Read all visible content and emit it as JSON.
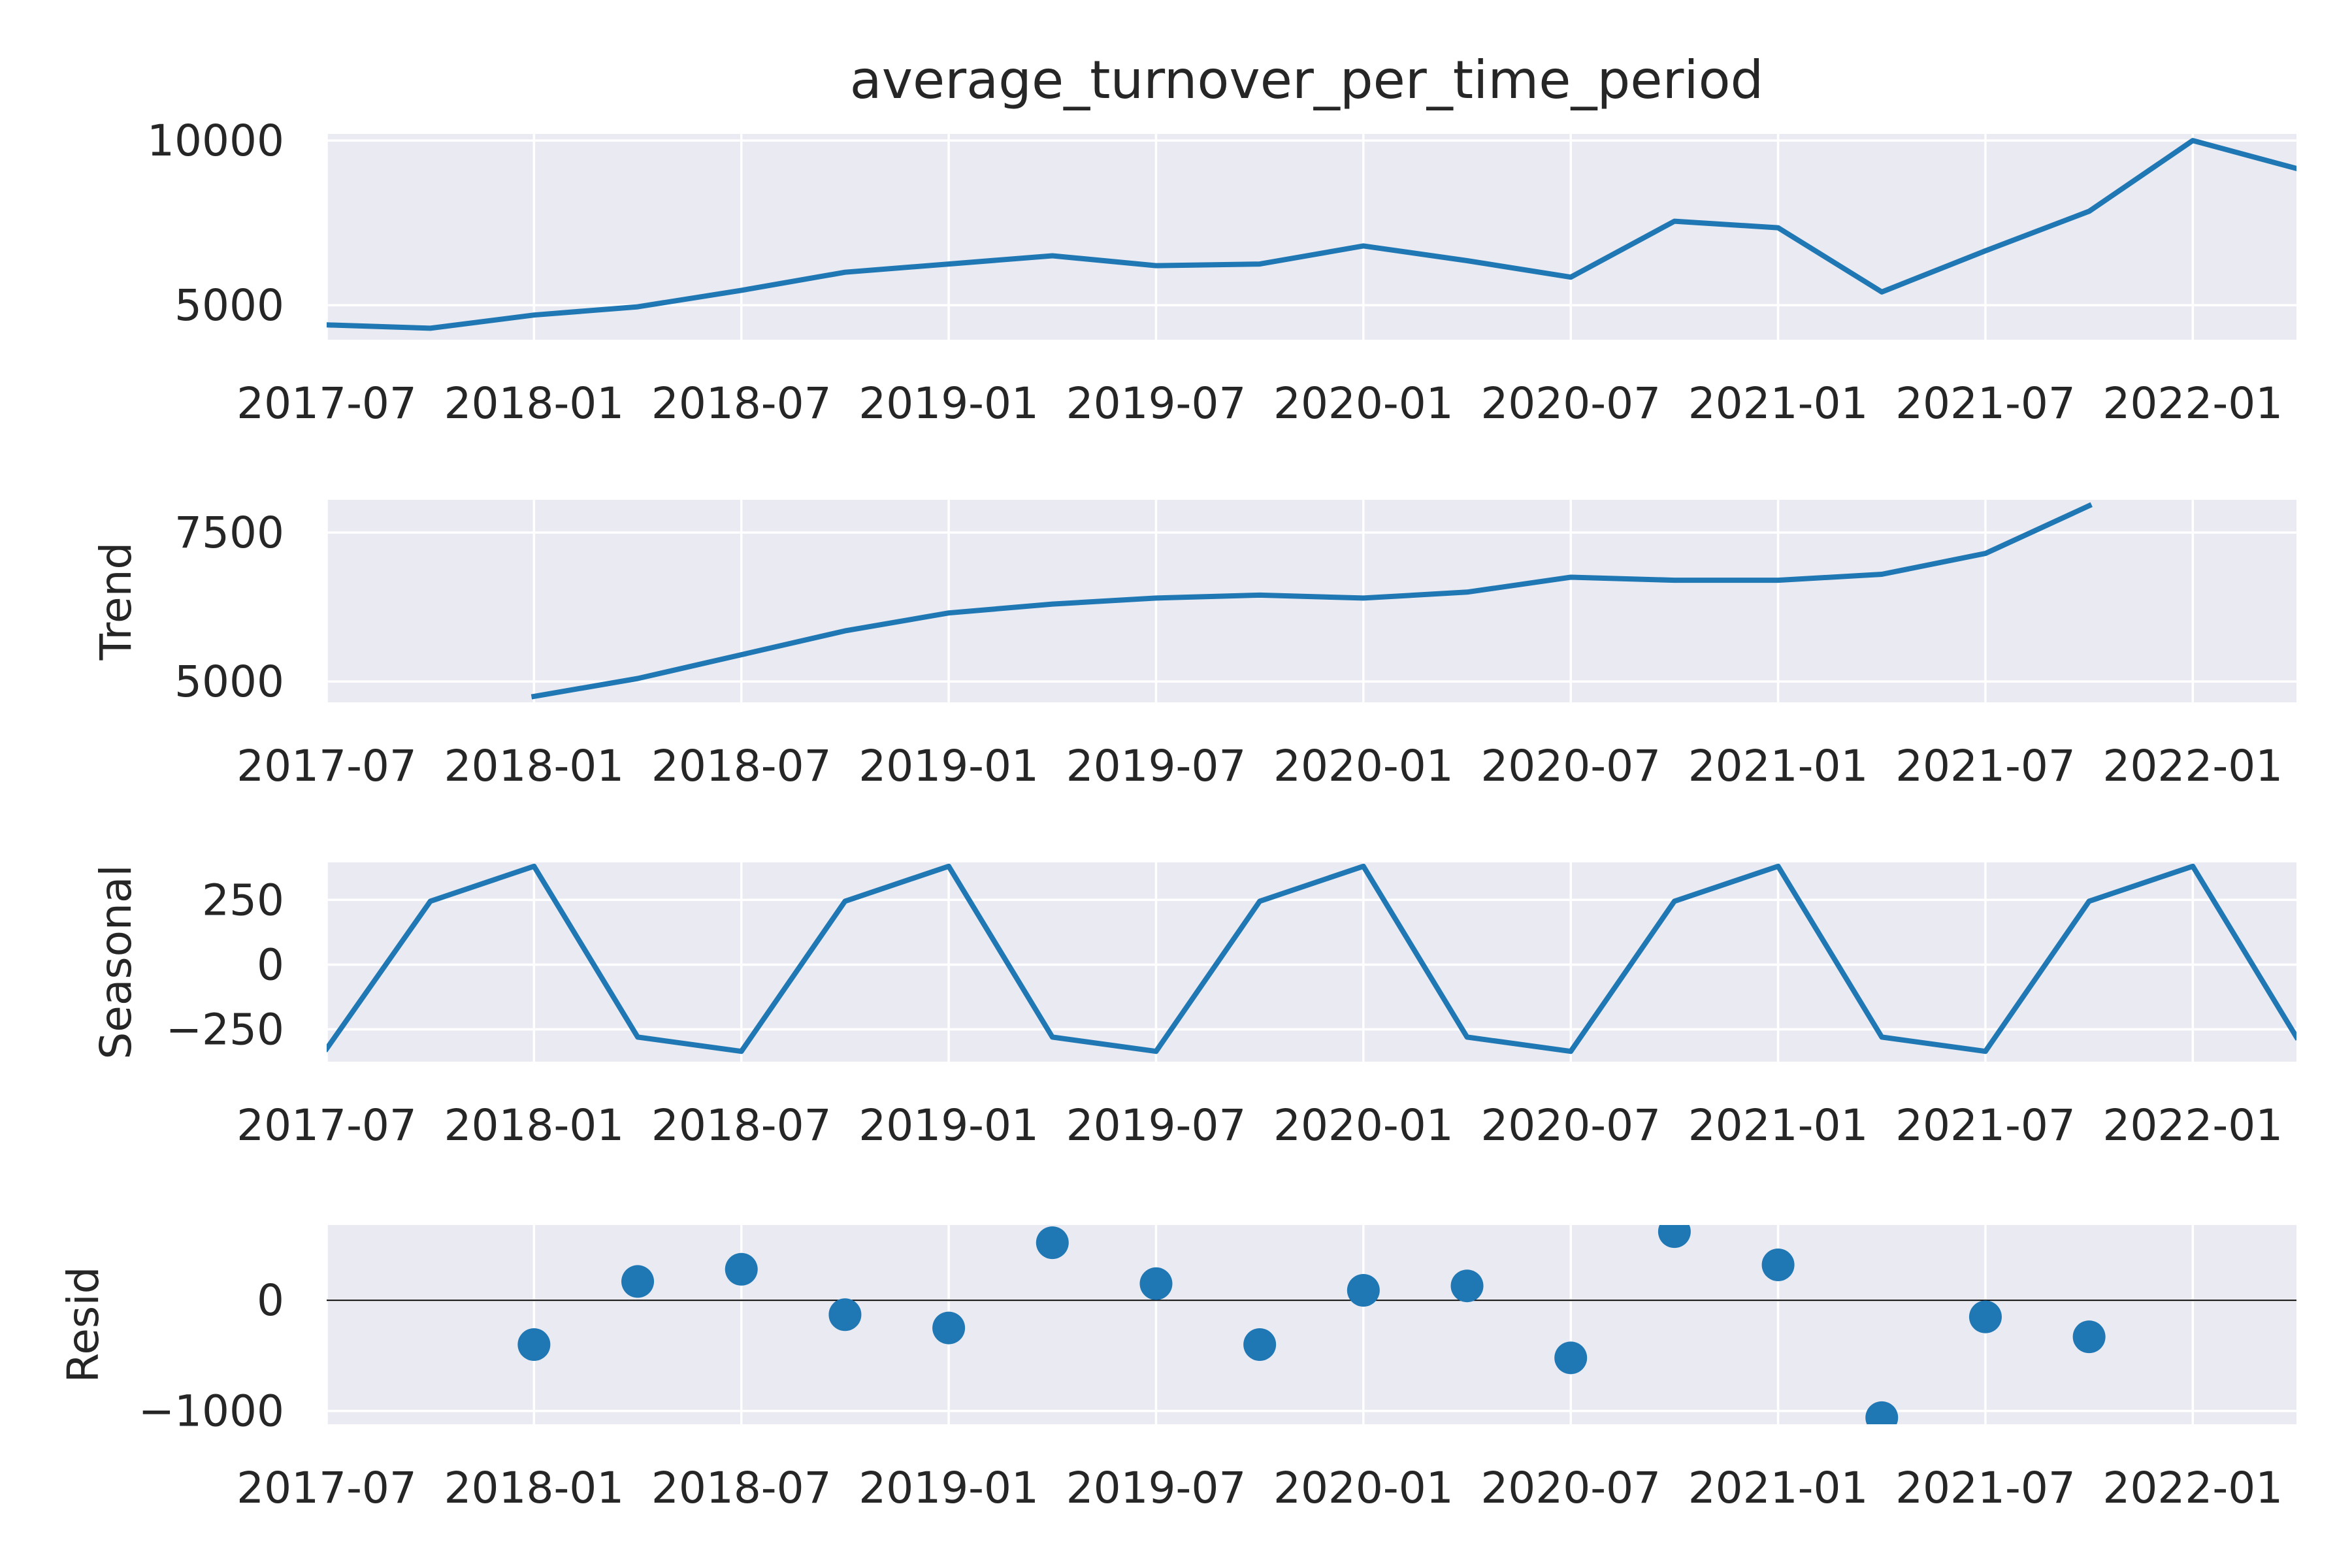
{
  "title": "average_turnover_per_time_period",
  "colors": {
    "series": "#1f77b4",
    "axes_background": "#eaeaf2",
    "grid": "#ffffff"
  },
  "x_tick_labels": [
    "2017-07",
    "2018-01",
    "2018-07",
    "2019-01",
    "2019-07",
    "2020-01",
    "2020-07",
    "2021-01",
    "2021-07",
    "2022-01"
  ],
  "chart_data": [
    {
      "type": "line",
      "title": "average_turnover_per_time_period",
      "ylabel": "",
      "x": [
        "2017-07",
        "2017-10",
        "2018-01",
        "2018-04",
        "2018-07",
        "2018-10",
        "2019-01",
        "2019-04",
        "2019-07",
        "2019-10",
        "2020-01",
        "2020-04",
        "2020-07",
        "2020-10",
        "2021-01",
        "2021-04",
        "2021-07",
        "2021-10",
        "2022-01",
        "2022-04"
      ],
      "values": [
        4400,
        4300,
        4700,
        4950,
        5450,
        6000,
        6250,
        6500,
        6200,
        6250,
        6800,
        6350,
        5850,
        7550,
        7350,
        5400,
        6650,
        7850,
        10000,
        9150
      ],
      "xlim": [
        "2017-07",
        "2022-04"
      ],
      "ylim": [
        3950,
        10200
      ],
      "yticks": [
        5000,
        10000
      ],
      "yticklabels": [
        "5000",
        "10000"
      ],
      "grid": true
    },
    {
      "type": "line",
      "title": "",
      "ylabel": "Trend",
      "x": [
        "2018-01",
        "2018-04",
        "2018-07",
        "2018-10",
        "2019-01",
        "2019-04",
        "2019-07",
        "2019-10",
        "2020-01",
        "2020-04",
        "2020-07",
        "2020-10",
        "2021-01",
        "2021-04",
        "2021-07",
        "2021-10"
      ],
      "values": [
        4750,
        5050,
        5450,
        5850,
        6150,
        6300,
        6400,
        6450,
        6400,
        6500,
        6750,
        6700,
        6700,
        6800,
        7150,
        7950
      ],
      "xlim": [
        "2017-07",
        "2022-04"
      ],
      "ylim": [
        4650,
        8050
      ],
      "yticks": [
        5000,
        7500
      ],
      "yticklabels": [
        "5000",
        "7500"
      ],
      "grid": true
    },
    {
      "type": "line",
      "title": "",
      "ylabel": "Seasonal",
      "x": [
        "2017-07",
        "2017-10",
        "2018-01",
        "2018-04",
        "2018-07",
        "2018-10",
        "2019-01",
        "2019-04",
        "2019-07",
        "2019-10",
        "2020-01",
        "2020-04",
        "2020-07",
        "2020-10",
        "2021-01",
        "2021-04",
        "2021-07",
        "2021-10",
        "2022-01",
        "2022-04"
      ],
      "values": [
        -325,
        245,
        380,
        -280,
        -335,
        245,
        380,
        -280,
        -335,
        245,
        380,
        -280,
        -335,
        245,
        380,
        -280,
        -335,
        245,
        380,
        -280
      ],
      "xlim": [
        "2017-07",
        "2022-04"
      ],
      "ylim": [
        -375,
        395
      ],
      "yticks": [
        -250,
        0,
        250
      ],
      "yticklabels": [
        "−250",
        "0",
        "250"
      ],
      "grid": true
    },
    {
      "type": "scatter",
      "title": "",
      "ylabel": "Resid",
      "x": [
        "2018-01",
        "2018-04",
        "2018-07",
        "2018-10",
        "2019-01",
        "2019-04",
        "2019-07",
        "2019-10",
        "2020-01",
        "2020-04",
        "2020-07",
        "2020-10",
        "2021-01",
        "2021-04",
        "2021-07",
        "2021-10"
      ],
      "values": [
        -400,
        170,
        280,
        -130,
        -250,
        520,
        150,
        -400,
        90,
        130,
        -520,
        620,
        320,
        -1060,
        -150,
        -330
      ],
      "xlim": [
        "2017-07",
        "2022-04"
      ],
      "ylim": [
        -1120,
        680
      ],
      "yticks": [
        -1000,
        0
      ],
      "yticklabels": [
        "−1000",
        "0"
      ],
      "zero_line": true,
      "grid": true
    }
  ]
}
